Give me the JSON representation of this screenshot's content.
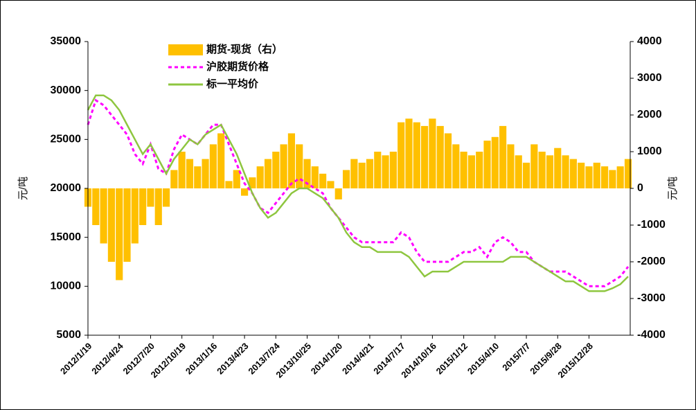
{
  "chart_data": {
    "type": "bar-line",
    "y_label": "元/吨",
    "y2_label": "元/吨",
    "categories": [
      "2012/1/19",
      null,
      null,
      null,
      "2012/4/24",
      null,
      null,
      null,
      "2012/7/20",
      null,
      null,
      null,
      "2012/10/19",
      null,
      null,
      null,
      "2013/1/16",
      null,
      null,
      null,
      "2013/4/23",
      null,
      null,
      null,
      "2013/7/24",
      null,
      null,
      null,
      "2013/10/25",
      null,
      null,
      null,
      "2014/1/20",
      null,
      null,
      null,
      "2014/4/21",
      null,
      null,
      null,
      "2014/7/17",
      null,
      null,
      null,
      "2014/10/16",
      null,
      null,
      null,
      "2015/1/12",
      null,
      null,
      null,
      "2015/4/10",
      null,
      null,
      null,
      "2015/7/7",
      null,
      null,
      null,
      "2015/9/28",
      null,
      null,
      null,
      "2015/12/28",
      null,
      null,
      null,
      null,
      null
    ],
    "series": [
      {
        "name": "期货-现货（右）",
        "color": "#ffc000",
        "axis": "y2",
        "kind": "bar",
        "values": [
          -500,
          -1000,
          -1500,
          -2000,
          -2500,
          -2000,
          -1500,
          -1000,
          -500,
          -1000,
          -500,
          500,
          1000,
          800,
          600,
          800,
          1200,
          1500,
          200,
          500,
          -200,
          300,
          600,
          800,
          1000,
          1200,
          1500,
          1200,
          800,
          600,
          400,
          200,
          -300,
          500,
          800,
          700,
          800,
          1000,
          900,
          1000,
          1800,
          1900,
          1800,
          1700,
          1900,
          1700,
          1500,
          1200,
          1000,
          900,
          1000,
          1300,
          1400,
          1700,
          1200,
          900,
          700,
          1200,
          1000,
          900,
          1100,
          900,
          800,
          700,
          600,
          700,
          600,
          500,
          600,
          800
        ]
      },
      {
        "name": "沪胶期货价格",
        "color": "#ff00ff",
        "kind": "dash",
        "values": [
          26500,
          29000,
          28500,
          27500,
          26500,
          25500,
          23500,
          22500,
          24500,
          22000,
          21500,
          24000,
          25500,
          25000,
          24500,
          25500,
          26500,
          26500,
          24500,
          22500,
          20500,
          19500,
          18000,
          17500,
          18500,
          19500,
          20500,
          21000,
          20500,
          20000,
          19500,
          18000,
          17000,
          16000,
          15000,
          14500,
          14500,
          14500,
          14500,
          14500,
          15500,
          15000,
          13500,
          12500,
          12500,
          12500,
          12500,
          13000,
          13500,
          13500,
          14000,
          13000,
          14500,
          15000,
          14500,
          13500,
          13500,
          12500,
          12000,
          11500,
          11500,
          11500,
          11000,
          10500,
          10000,
          10000,
          10000,
          10500,
          11000,
          12000
        ]
      },
      {
        "name": "标一平均价",
        "color": "#8ec63f",
        "kind": "line",
        "values": [
          28000,
          29500,
          29500,
          29000,
          28000,
          26500,
          25000,
          23500,
          24500,
          23000,
          21500,
          23000,
          24000,
          25000,
          24500,
          25500,
          26000,
          26500,
          25000,
          23500,
          21500,
          19500,
          18000,
          17000,
          17500,
          18500,
          19500,
          20000,
          20000,
          19500,
          19000,
          18000,
          17000,
          15500,
          14500,
          14000,
          14000,
          13500,
          13500,
          13500,
          13500,
          13000,
          12000,
          11000,
          11500,
          11500,
          11500,
          12000,
          12500,
          12500,
          12500,
          12500,
          12500,
          12500,
          13000,
          13000,
          13000,
          12500,
          12000,
          11500,
          11000,
          10500,
          10500,
          10000,
          9500,
          9500,
          9500,
          9800,
          10200,
          11000
        ]
      }
    ],
    "ylim": [
      5000,
      35000
    ],
    "yticks": [
      5000,
      10000,
      15000,
      20000,
      25000,
      30000,
      35000
    ],
    "y2lim": [
      -4000,
      4000
    ],
    "y2ticks": [
      -4000,
      -3000,
      -2000,
      -1000,
      0,
      1000,
      2000,
      3000,
      4000
    ]
  }
}
